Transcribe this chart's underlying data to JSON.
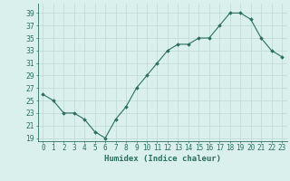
{
  "x": [
    0,
    1,
    2,
    3,
    4,
    5,
    6,
    7,
    8,
    9,
    10,
    11,
    12,
    13,
    14,
    15,
    16,
    17,
    18,
    19,
    20,
    21,
    22,
    23
  ],
  "y": [
    26,
    25,
    23,
    23,
    22,
    20,
    19,
    22,
    24,
    27,
    29,
    31,
    33,
    34,
    34,
    35,
    35,
    37,
    39,
    39,
    38,
    35,
    33,
    32
  ],
  "line_color": "#2d6e5e",
  "marker": "D",
  "marker_size": 1.8,
  "bg_color": "#d9f0ed",
  "grid_color": "#c0d8d4",
  "xlabel": "Humidex (Indice chaleur)",
  "xlim": [
    -0.5,
    23.5
  ],
  "ylim": [
    18.5,
    40.5
  ],
  "yticks": [
    19,
    21,
    23,
    25,
    27,
    29,
    31,
    33,
    35,
    37,
    39
  ],
  "xtick_labels": [
    "0",
    "1",
    "2",
    "3",
    "4",
    "5",
    "6",
    "7",
    "8",
    "9",
    "10",
    "11",
    "12",
    "13",
    "14",
    "15",
    "16",
    "17",
    "18",
    "19",
    "20",
    "21",
    "22",
    "23"
  ],
  "xlabel_fontsize": 6.5,
  "tick_fontsize": 5.5,
  "line_width": 0.8
}
